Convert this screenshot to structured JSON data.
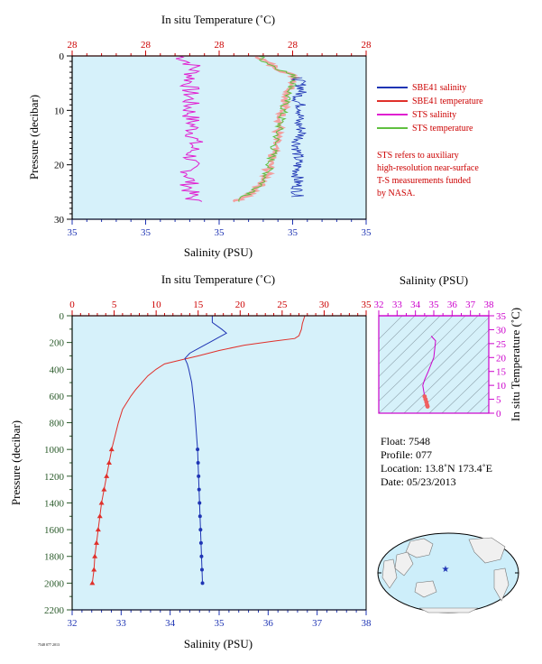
{
  "colors": {
    "panel_bg": "#d6f1fa",
    "sbe_salinity": "#1f35b4",
    "sbe_temperature": "#e0302a",
    "sts_salinity": "#e020d0",
    "sts_temperature": "#60c040",
    "sts_temp_overlay": "#f3a0a0",
    "axis_red": "#cc0000",
    "axis_green": "#2a5a2a",
    "axis_blue": "#1f35b4",
    "magenta": "#cc00cc"
  },
  "top_panel": {
    "top_axis_title": "In situ Temperature (˚C)",
    "top_ticks": [
      "28",
      "28",
      "28",
      "28",
      "28"
    ],
    "bottom_axis_title": "Salinity (PSU)",
    "bottom_ticks": [
      "35",
      "35",
      "35",
      "35",
      "35"
    ],
    "left_axis_title": "Pressure (decibar)",
    "left_ticks": [
      "0",
      "10",
      "20",
      "30"
    ]
  },
  "legend": {
    "items": [
      "SBE41 salinity",
      "SBE41 temperature",
      "STS salinity",
      "STS temperature"
    ],
    "note": [
      "STS refers to auxiliary",
      "high-resolution near-surface",
      "T-S measurements funded",
      "by NASA."
    ]
  },
  "main_panel": {
    "top_axis_title": "In situ Temperature (˚C)",
    "top_ticks": [
      "0",
      "5",
      "10",
      "15",
      "20",
      "25",
      "30",
      "35"
    ],
    "bottom_axis_title": "Salinity (PSU)",
    "bottom_ticks": [
      "32",
      "33",
      "34",
      "35",
      "36",
      "37",
      "38"
    ],
    "left_axis_title": "Pressure (decibar)",
    "left_ticks": [
      "0",
      "200",
      "400",
      "600",
      "800",
      "1000",
      "1200",
      "1400",
      "1600",
      "1800",
      "2000",
      "2200"
    ]
  },
  "ts_panel": {
    "top_axis_title": "Salinity (PSU)",
    "top_ticks": [
      "32",
      "33",
      "34",
      "35",
      "36",
      "37",
      "38"
    ],
    "right_axis_title": "In situ Temperature (˚C)",
    "right_ticks": [
      "0",
      "5",
      "10",
      "15",
      "20",
      "25",
      "30",
      "35"
    ]
  },
  "float_info": {
    "float": "Float:  7548",
    "profile": "Profile:  077",
    "location": "Location:  13.8˚N  173.4˚E",
    "date": "Date:  05/23/2013"
  },
  "footer_code": "7548 077 2013",
  "chart_data": [
    {
      "type": "line",
      "title": "",
      "x_top_label": "In situ Temperature (˚C)",
      "xlabel": "Salinity (PSU)",
      "ylabel": "Pressure (decibar)",
      "ylim": [
        30,
        0
      ],
      "series": [
        {
          "name": "SBE41 salinity",
          "points": [
            [
              4,
              34.86
            ],
            [
              6,
              34.87
            ],
            [
              8,
              34.86
            ],
            [
              10,
              34.87
            ],
            [
              12,
              34.86
            ],
            [
              14,
              34.87
            ],
            [
              16,
              34.86
            ],
            [
              18,
              34.86
            ],
            [
              20,
              34.86
            ],
            [
              22,
              34.86
            ],
            [
              24,
              34.86
            ],
            [
              26,
              34.86
            ]
          ]
        },
        {
          "name": "STS salinity",
          "points": [
            [
              0,
              34.62
            ],
            [
              2,
              34.65
            ],
            [
              5,
              34.64
            ],
            [
              10,
              34.64
            ],
            [
              15,
              34.65
            ],
            [
              20,
              34.64
            ],
            [
              25,
              34.64
            ],
            [
              27,
              34.65
            ]
          ]
        },
        {
          "name": "STS temperature",
          "points": [
            [
              0,
              28.25
            ],
            [
              1,
              28.26
            ],
            [
              4,
              28.32
            ],
            [
              8,
              28.3
            ],
            [
              12,
              28.29
            ],
            [
              16,
              28.28
            ],
            [
              20,
              28.27
            ],
            [
              23,
              28.26
            ],
            [
              25,
              28.24
            ],
            [
              27,
              28.2
            ]
          ]
        }
      ]
    },
    {
      "type": "line",
      "title": "",
      "x_top_label": "In situ Temperature (˚C)",
      "xlabel": "Salinity (PSU)",
      "ylabel": "Pressure (decibar)",
      "ylim": [
        2200,
        0
      ],
      "xlim_salinity": [
        32,
        38
      ],
      "xlim_temperature": [
        0,
        35
      ],
      "series": [
        {
          "name": "SBE41 temperature",
          "variable": "temperature",
          "points": [
            [
              0,
              27.7
            ],
            [
              20,
              27.6
            ],
            [
              60,
              27.4
            ],
            [
              100,
              27.3
            ],
            [
              150,
              27.0
            ],
            [
              170,
              26.5
            ],
            [
              190,
              24.0
            ],
            [
              220,
              20.5
            ],
            [
              260,
              17.5
            ],
            [
              300,
              15.0
            ],
            [
              330,
              13.0
            ],
            [
              360,
              11.0
            ],
            [
              400,
              10.0
            ],
            [
              450,
              9.0
            ],
            [
              500,
              8.3
            ],
            [
              550,
              7.6
            ],
            [
              600,
              7.0
            ],
            [
              700,
              6.0
            ],
            [
              800,
              5.5
            ],
            [
              900,
              5.1
            ],
            [
              1000,
              4.7
            ],
            [
              1100,
              4.4
            ],
            [
              1200,
              4.1
            ],
            [
              1300,
              3.8
            ],
            [
              1400,
              3.5
            ],
            [
              1500,
              3.3
            ],
            [
              1600,
              3.1
            ],
            [
              1700,
              2.9
            ],
            [
              1800,
              2.7
            ],
            [
              1900,
              2.6
            ],
            [
              2000,
              2.4
            ]
          ]
        },
        {
          "name": "SBE41 salinity",
          "variable": "salinity",
          "points": [
            [
              0,
              34.86
            ],
            [
              50,
              34.86
            ],
            [
              100,
              35.05
            ],
            [
              130,
              35.15
            ],
            [
              160,
              35.0
            ],
            [
              200,
              34.8
            ],
            [
              240,
              34.6
            ],
            [
              280,
              34.4
            ],
            [
              320,
              34.3
            ],
            [
              360,
              34.35
            ],
            [
              400,
              34.38
            ],
            [
              500,
              34.44
            ],
            [
              600,
              34.47
            ],
            [
              700,
              34.5
            ],
            [
              800,
              34.52
            ],
            [
              900,
              34.54
            ],
            [
              1000,
              34.56
            ],
            [
              1100,
              34.57
            ],
            [
              1200,
              34.58
            ],
            [
              1300,
              34.59
            ],
            [
              1400,
              34.6
            ],
            [
              1500,
              34.61
            ],
            [
              1600,
              34.62
            ],
            [
              1700,
              34.63
            ],
            [
              1800,
              34.64
            ],
            [
              1900,
              34.65
            ],
            [
              2000,
              34.66
            ]
          ]
        }
      ]
    },
    {
      "type": "scatter",
      "title": "",
      "xlabel": "Salinity (PSU)",
      "ylabel": "In situ Temperature (˚C)",
      "xlim": [
        32,
        38
      ],
      "ylim": [
        0,
        35
      ],
      "series": [
        {
          "name": "T-S",
          "points": [
            [
              34.86,
              27.7
            ],
            [
              35.1,
              26.0
            ],
            [
              35.0,
              20.0
            ],
            [
              34.7,
              15.0
            ],
            [
              34.5,
              12.0
            ],
            [
              34.4,
              10.0
            ],
            [
              34.45,
              8.0
            ],
            [
              34.5,
              6.0
            ],
            [
              34.55,
              5.0
            ],
            [
              34.6,
              4.0
            ],
            [
              34.63,
              3.0
            ],
            [
              34.66,
              2.4
            ]
          ]
        }
      ]
    }
  ]
}
